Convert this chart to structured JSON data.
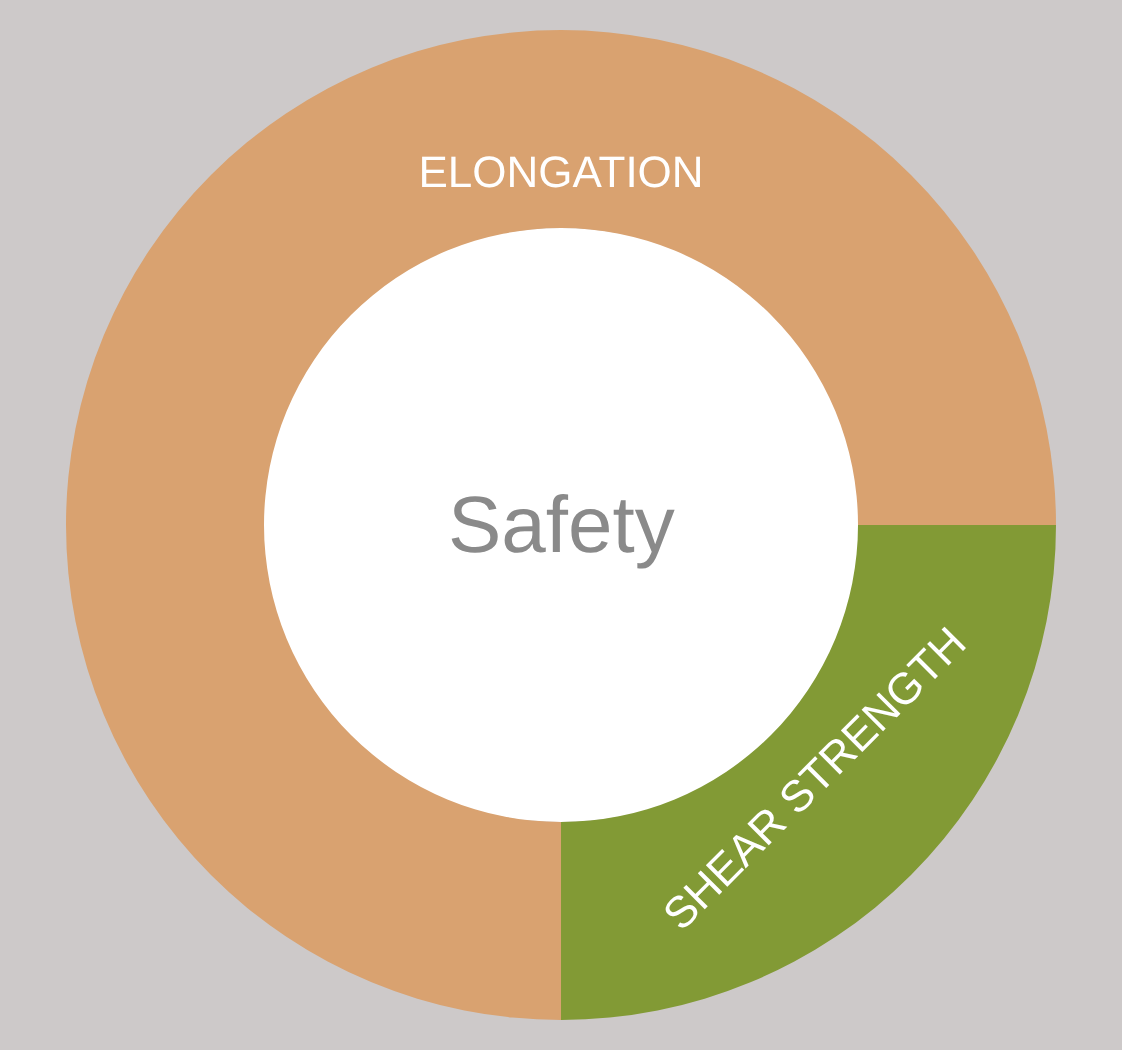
{
  "chart_data": {
    "type": "donut",
    "categories": [
      "ELONGATION",
      "SHEAR STRENGTH"
    ],
    "values": [
      75,
      25
    ],
    "colors": [
      "#d9a270",
      "#829a35"
    ],
    "annotations": [
      "Safety"
    ],
    "legend": false
  }
}
